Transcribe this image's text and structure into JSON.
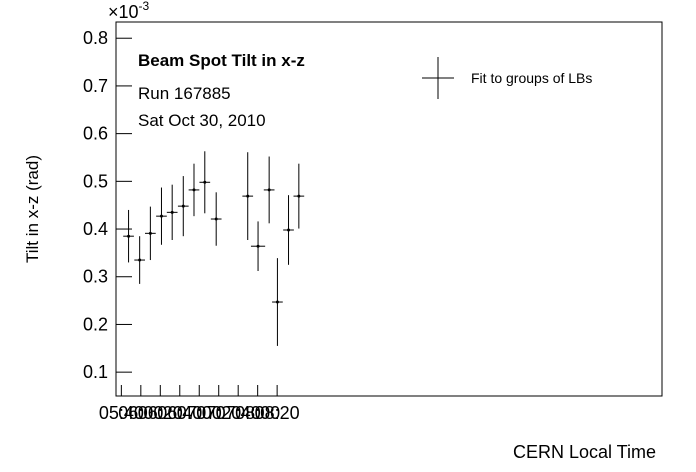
{
  "chart_data": {
    "type": "errorbar",
    "annotations": [
      "Beam Spot Tilt in x-z",
      "Run 167885",
      "Sat Oct 30, 2010"
    ],
    "xlabel": "CERN Local Time",
    "ylabel": "Tilt in x-z (rad)",
    "y_multiplier": {
      "base": "×10",
      "exponent": "-3"
    },
    "legend_position": "upper right",
    "series": [
      {
        "name": "Fit to groups of LBs",
        "color": "#000000",
        "x": [
          347.4,
          358.8,
          369.8,
          381.2,
          392.2,
          403.6,
          414.6,
          425.7,
          437.4,
          469.8,
          480.4,
          491.8,
          500.3,
          511.7,
          522.3
        ],
        "xerr": [
          5.5,
          5.5,
          5.5,
          5.5,
          5.5,
          5.5,
          5.5,
          5.5,
          5.5,
          5.5,
          7.3,
          5.5,
          5.5,
          5.5,
          5.5
        ],
        "values": [
          0.385,
          0.335,
          0.391,
          0.427,
          0.435,
          0.448,
          0.482,
          0.498,
          0.421,
          0.469,
          0.364,
          0.482,
          0.247,
          0.398,
          0.469
        ],
        "yerr": [
          0.055,
          0.05,
          0.056,
          0.06,
          0.058,
          0.063,
          0.055,
          0.065,
          0.056,
          0.092,
          0.052,
          0.07,
          0.092,
          0.073,
          0.068
        ]
      }
    ],
    "xlim": [
      334.5,
      895.3
    ],
    "xticks": [
      {
        "value": 340,
        "label": "05:40"
      },
      {
        "value": 360,
        "label": "06:00"
      },
      {
        "value": 380,
        "label": "06:20"
      },
      {
        "value": 400,
        "label": "06:40"
      },
      {
        "value": 420,
        "label": "07:00"
      },
      {
        "value": 440,
        "label": "07:20"
      },
      {
        "value": 460,
        "label": "07:40"
      },
      {
        "value": 480,
        "label": "08:00"
      },
      {
        "value": 500,
        "label": "08:20"
      }
    ],
    "ylim": [
      0.05,
      0.834
    ],
    "yticks": [
      0.1,
      0.2,
      0.3,
      0.4,
      0.5,
      0.6,
      0.7,
      0.8
    ]
  }
}
